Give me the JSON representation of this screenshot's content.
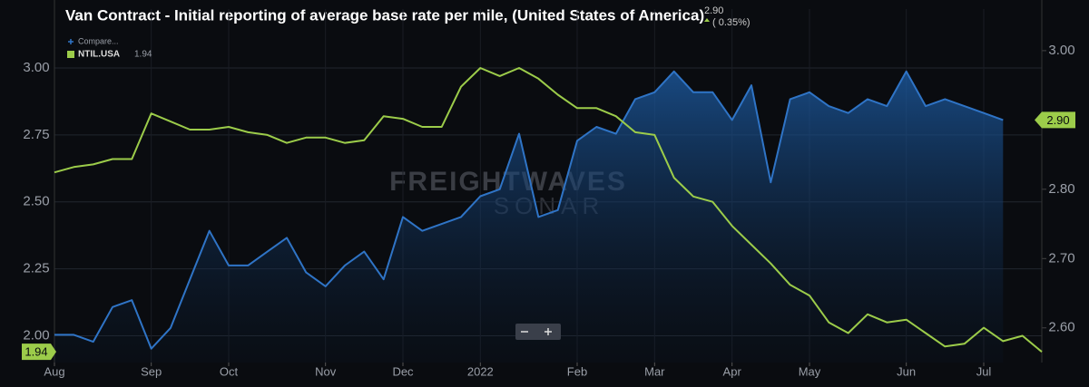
{
  "chart_data": {
    "type": "line",
    "title": "Van Contract - Initial reporting of average base rate per mile, (United States of America)",
    "header_change": "( 0.35%)",
    "watermark": [
      "FREIGHTWAVES",
      "SONAR"
    ],
    "categories": [
      "Aug",
      null,
      null,
      null,
      null,
      "Sep",
      null,
      null,
      null,
      "Oct",
      null,
      null,
      null,
      null,
      "Nov",
      null,
      null,
      null,
      "Dec",
      null,
      null,
      null,
      "2022",
      null,
      null,
      null,
      null,
      "Feb",
      null,
      null,
      null,
      "Mar",
      null,
      null,
      null,
      "Apr",
      null,
      null,
      null,
      "May",
      null,
      null,
      null,
      null,
      "Jun",
      null,
      null,
      null,
      "Jul",
      null,
      null,
      null
    ],
    "series": [
      {
        "name": "Compare...",
        "color": "#2f74c6",
        "axis": "y2",
        "last_label": "2.90",
        "values": [
          2.59,
          2.59,
          2.58,
          2.63,
          2.64,
          2.57,
          2.6,
          2.67,
          2.74,
          2.69,
          2.69,
          2.71,
          2.73,
          2.68,
          2.66,
          2.69,
          2.71,
          2.67,
          2.76,
          2.74,
          2.75,
          2.76,
          2.79,
          2.8,
          2.88,
          2.76,
          2.77,
          2.87,
          2.89,
          2.88,
          2.93,
          2.94,
          2.97,
          2.94,
          2.94,
          2.9,
          2.95,
          2.81,
          2.93,
          2.94,
          2.92,
          2.91,
          2.93,
          2.92,
          2.97,
          2.92,
          2.93,
          2.92,
          2.91,
          2.9,
          null,
          null
        ]
      },
      {
        "name": "NTIL.USA",
        "color": "#9ccc4a",
        "last_label": "1.94",
        "values": [
          2.61,
          2.63,
          2.64,
          2.66,
          2.66,
          2.83,
          2.8,
          2.77,
          2.77,
          2.78,
          2.76,
          2.75,
          2.72,
          2.74,
          2.74,
          2.72,
          2.73,
          2.82,
          2.81,
          2.78,
          2.78,
          2.93,
          3.0,
          2.97,
          3.0,
          2.96,
          2.9,
          2.85,
          2.85,
          2.82,
          2.76,
          2.75,
          2.59,
          2.52,
          2.5,
          2.41,
          2.34,
          2.27,
          2.19,
          2.15,
          2.05,
          2.01,
          2.08,
          2.05,
          2.06,
          2.01,
          1.96,
          1.97,
          2.03,
          1.98,
          2.0,
          1.94
        ]
      }
    ],
    "ylim": [
      1.9,
      3.22
    ],
    "yticks": [
      {
        "value": 2,
        "label": "2.00"
      },
      2.25,
      {
        "value": 2.5,
        "label": "2.50"
      },
      2.75,
      {
        "value": 3,
        "label": "3.00"
      }
    ],
    "y2lim": [
      2.55,
      3.06
    ],
    "y2ticks": [
      {
        "value": 2.6,
        "label": "2.60"
      },
      {
        "value": 2.7,
        "label": "2.70"
      },
      {
        "value": 2.8,
        "label": "2.80"
      },
      {
        "value": 2.9,
        "label": "2.90"
      },
      {
        "value": 3,
        "label": "3.00"
      }
    ],
    "grid": true
  }
}
